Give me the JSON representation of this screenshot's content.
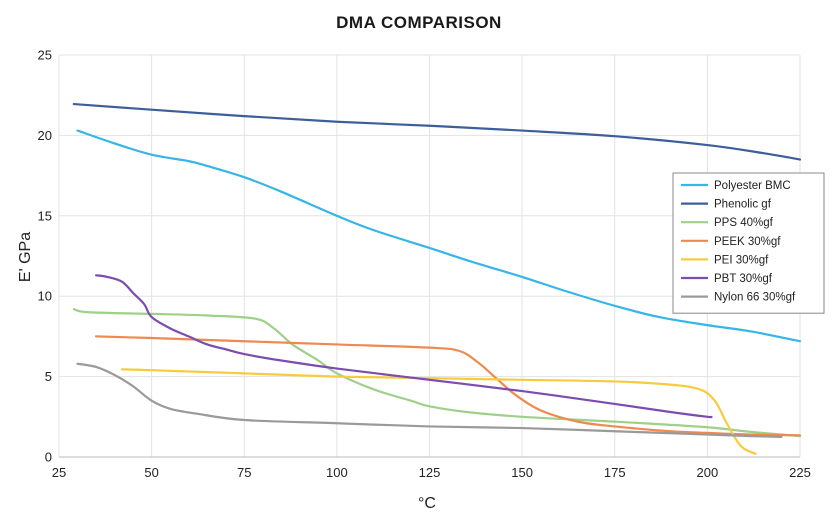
{
  "chart_data": {
    "type": "line",
    "title": "DMA COMPARISON",
    "xlabel": "°C",
    "ylabel": "E' GPa",
    "xlim": [
      25,
      225
    ],
    "ylim": [
      0,
      25
    ],
    "x_ticks": [
      25,
      50,
      75,
      100,
      125,
      150,
      175,
      200,
      225
    ],
    "y_ticks": [
      0,
      5,
      10,
      15,
      20,
      25
    ],
    "grid": true,
    "legend_position": "right",
    "series": [
      {
        "name": "Polyester BMC",
        "color": "#36b6e6",
        "points": [
          [
            30,
            20.3
          ],
          [
            40,
            19.5
          ],
          [
            50,
            18.8
          ],
          [
            60,
            18.4
          ],
          [
            65,
            18.1
          ],
          [
            75,
            17.4
          ],
          [
            85,
            16.5
          ],
          [
            100,
            15.0
          ],
          [
            110,
            14.1
          ],
          [
            125,
            13.0
          ],
          [
            137,
            12.1
          ],
          [
            150,
            11.2
          ],
          [
            162,
            10.3
          ],
          [
            175,
            9.4
          ],
          [
            187,
            8.7
          ],
          [
            200,
            8.2
          ],
          [
            212,
            7.8
          ],
          [
            225,
            7.2
          ]
        ]
      },
      {
        "name": "Phenolic gf",
        "color": "#3d5f99",
        "points": [
          [
            29,
            21.95
          ],
          [
            50,
            21.6
          ],
          [
            75,
            21.2
          ],
          [
            100,
            20.85
          ],
          [
            125,
            20.6
          ],
          [
            150,
            20.3
          ],
          [
            175,
            19.95
          ],
          [
            200,
            19.4
          ],
          [
            215,
            18.9
          ],
          [
            225,
            18.5
          ]
        ]
      },
      {
        "name": "PPS 40%gf",
        "color": "#9fd08a",
        "points": [
          [
            29,
            9.2
          ],
          [
            33,
            9.0
          ],
          [
            50,
            8.9
          ],
          [
            65,
            8.8
          ],
          [
            78,
            8.6
          ],
          [
            83,
            8.0
          ],
          [
            88,
            7.0
          ],
          [
            95,
            6.0
          ],
          [
            100,
            5.2
          ],
          [
            110,
            4.2
          ],
          [
            120,
            3.5
          ],
          [
            125,
            3.15
          ],
          [
            135,
            2.8
          ],
          [
            150,
            2.5
          ],
          [
            175,
            2.2
          ],
          [
            200,
            1.85
          ],
          [
            210,
            1.6
          ],
          [
            225,
            1.3
          ]
        ]
      },
      {
        "name": "PEEK 30%gf",
        "color": "#ee8a4f",
        "points": [
          [
            35,
            7.5
          ],
          [
            50,
            7.4
          ],
          [
            75,
            7.2
          ],
          [
            100,
            7.0
          ],
          [
            125,
            6.8
          ],
          [
            133,
            6.6
          ],
          [
            138,
            5.9
          ],
          [
            143,
            4.9
          ],
          [
            148,
            3.9
          ],
          [
            155,
            2.9
          ],
          [
            165,
            2.2
          ],
          [
            175,
            1.9
          ],
          [
            190,
            1.6
          ],
          [
            200,
            1.5
          ],
          [
            212,
            1.4
          ],
          [
            225,
            1.35
          ]
        ]
      },
      {
        "name": "PEI 30%gf",
        "color": "#f7cc3c",
        "points": [
          [
            42,
            5.45
          ],
          [
            50,
            5.4
          ],
          [
            75,
            5.2
          ],
          [
            100,
            5.0
          ],
          [
            125,
            4.9
          ],
          [
            150,
            4.8
          ],
          [
            175,
            4.7
          ],
          [
            190,
            4.5
          ],
          [
            198,
            4.2
          ],
          [
            202,
            3.5
          ],
          [
            205,
            2.2
          ],
          [
            208,
            1.0
          ],
          [
            210,
            0.5
          ],
          [
            213,
            0.2
          ]
        ]
      },
      {
        "name": "PBT 30%gf",
        "color": "#7c4cae",
        "points": [
          [
            35,
            11.3
          ],
          [
            38,
            11.2
          ],
          [
            42,
            10.9
          ],
          [
            45,
            10.2
          ],
          [
            48,
            9.5
          ],
          [
            50,
            8.7
          ],
          [
            55,
            8.0
          ],
          [
            60,
            7.5
          ],
          [
            65,
            7.0
          ],
          [
            70,
            6.7
          ],
          [
            75,
            6.4
          ],
          [
            85,
            6.0
          ],
          [
            100,
            5.5
          ],
          [
            125,
            4.8
          ],
          [
            150,
            4.1
          ],
          [
            175,
            3.3
          ],
          [
            190,
            2.8
          ],
          [
            200,
            2.5
          ],
          [
            201,
            2.5
          ]
        ]
      },
      {
        "name": "Nylon 66 30%gf",
        "color": "#9a9a9a",
        "points": [
          [
            30,
            5.8
          ],
          [
            35,
            5.6
          ],
          [
            40,
            5.1
          ],
          [
            45,
            4.4
          ],
          [
            50,
            3.5
          ],
          [
            55,
            3.0
          ],
          [
            62,
            2.7
          ],
          [
            75,
            2.3
          ],
          [
            100,
            2.1
          ],
          [
            125,
            1.9
          ],
          [
            150,
            1.8
          ],
          [
            175,
            1.6
          ],
          [
            200,
            1.4
          ],
          [
            212,
            1.3
          ],
          [
            220,
            1.25
          ]
        ]
      }
    ]
  }
}
